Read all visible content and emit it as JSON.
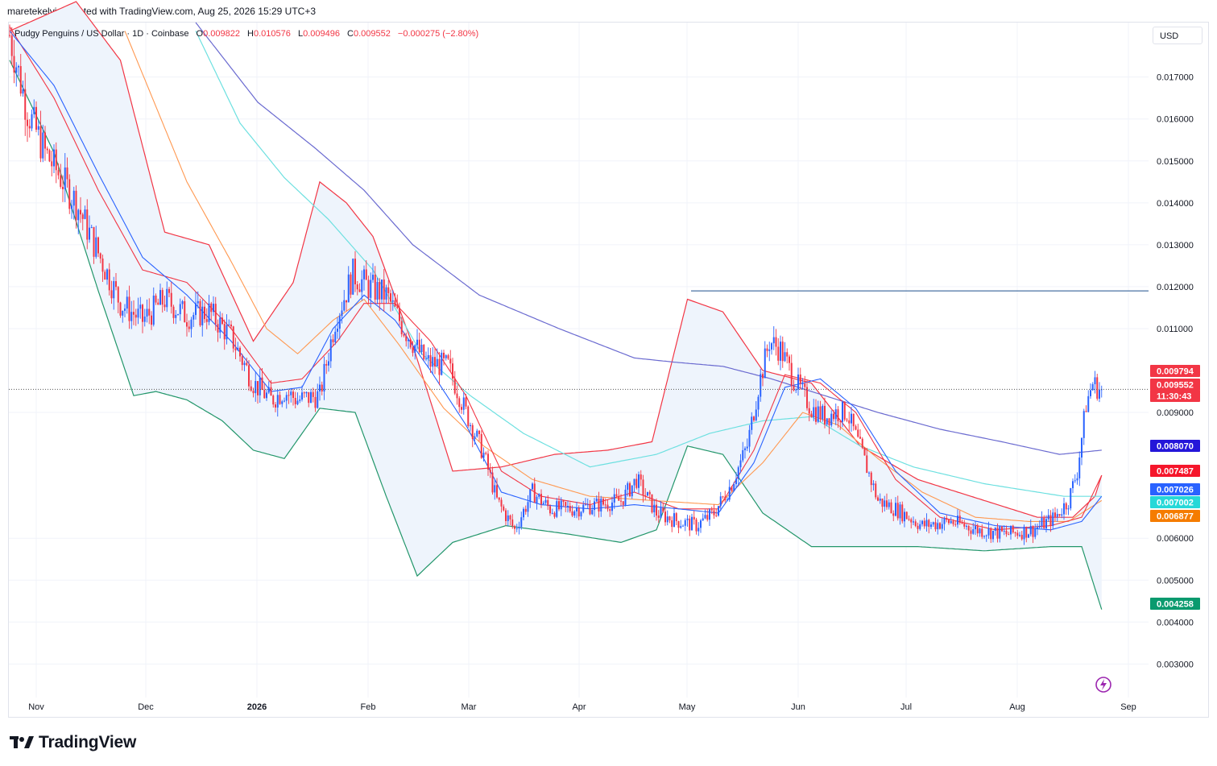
{
  "header": {
    "created_by": "maretekelvin created with TradingView.com, Aug 25, 2026 15:29 UTC+3"
  },
  "legend": {
    "symbol": "Pudgy Penguins / US Dollar · 1D · Coinbase",
    "open_label": "O",
    "open": "0.009822",
    "high_label": "H",
    "high": "0.010576",
    "low_label": "L",
    "low": "0.009496",
    "close_label": "C",
    "close": "0.009552",
    "change": "−0.000275 (−2.80%)"
  },
  "currency": "USD",
  "brand": "TradingView",
  "colors": {
    "up": "#2962ff",
    "down": "#f23645",
    "bb_fill": "#eef4fc",
    "ma_red": "#f23645",
    "ma_blue": "#2962ff",
    "ma_orange": "#ff9850",
    "ma_cyan": "#6de0e0",
    "ma_purple": "#6a6ad0",
    "bb_lower": "#22966a",
    "resistance": "#1e4f8c",
    "lightning": "#9c27b0"
  },
  "chart_data": {
    "type": "candlestick",
    "ylim": [
      0.0022,
      0.0183
    ],
    "y_ticks": [
      "0.017000",
      "0.016000",
      "0.015000",
      "0.014000",
      "0.013000",
      "0.012000",
      "0.011000",
      "0.009000",
      "0.006000",
      "0.005000",
      "0.004000",
      "0.003000"
    ],
    "x_labels": [
      "Nov",
      "Dec",
      "2026",
      "Feb",
      "Mar",
      "Apr",
      "May",
      "Jun",
      "Jul",
      "Aug",
      "Sep"
    ],
    "last_price": 0.009552,
    "resistance_level": 0.0119,
    "badges": [
      {
        "text": "0.009794",
        "color": "#f23645",
        "value": 0.009794
      },
      {
        "text": "0.009552",
        "color": "#f23645",
        "value": 0.009552
      },
      {
        "text": "11:30:43",
        "color": "#f23645",
        "value": 0.009552
      },
      {
        "text": "0.008070",
        "color": "#2416d9",
        "value": 0.00807
      },
      {
        "text": "0.007487",
        "color": "#f5162b",
        "value": 0.007487
      },
      {
        "text": "0.007026",
        "color": "#2962ff",
        "value": 0.007026
      },
      {
        "text": "0.007002",
        "color": "#26d8d8",
        "value": 0.007002
      },
      {
        "text": "0.006877",
        "color": "#f57c00",
        "value": 0.006877
      },
      {
        "text": "0.004258",
        "color": "#0a9a6e",
        "value": 0.004258
      }
    ],
    "close_path": [
      [
        0,
        0.018
      ],
      [
        8,
        0.0162
      ],
      [
        16,
        0.0152
      ],
      [
        22,
        0.0147
      ],
      [
        30,
        0.014
      ],
      [
        40,
        0.0128
      ],
      [
        50,
        0.0116
      ],
      [
        60,
        0.0112
      ],
      [
        70,
        0.0117
      ],
      [
        80,
        0.0113
      ],
      [
        90,
        0.0114
      ],
      [
        100,
        0.0108
      ],
      [
        110,
        0.0097
      ],
      [
        118,
        0.0093
      ],
      [
        124,
        0.0095
      ],
      [
        130,
        0.0093
      ],
      [
        140,
        0.0094
      ],
      [
        147,
        0.0112
      ],
      [
        155,
        0.0123
      ],
      [
        162,
        0.012
      ],
      [
        170,
        0.0118
      ],
      [
        178,
        0.011
      ],
      [
        188,
        0.0102
      ],
      [
        198,
        0.0101
      ],
      [
        206,
        0.009
      ],
      [
        214,
        0.008
      ],
      [
        220,
        0.0069
      ],
      [
        228,
        0.0062
      ],
      [
        236,
        0.0071
      ],
      [
        244,
        0.0067
      ],
      [
        255,
        0.0067
      ],
      [
        266,
        0.0068
      ],
      [
        276,
        0.0069
      ],
      [
        283,
        0.0074
      ],
      [
        292,
        0.0066
      ],
      [
        302,
        0.0064
      ],
      [
        310,
        0.0063
      ],
      [
        318,
        0.0066
      ],
      [
        326,
        0.0073
      ],
      [
        333,
        0.0082
      ],
      [
        338,
        0.0096
      ],
      [
        343,
        0.0107
      ],
      [
        348,
        0.0105
      ],
      [
        354,
        0.0098
      ],
      [
        362,
        0.0091
      ],
      [
        368,
        0.0089
      ],
      [
        373,
        0.009
      ],
      [
        378,
        0.009
      ],
      [
        385,
        0.008
      ],
      [
        392,
        0.0069
      ],
      [
        400,
        0.0067
      ],
      [
        412,
        0.0063
      ],
      [
        425,
        0.0064
      ],
      [
        437,
        0.0062
      ],
      [
        450,
        0.0061
      ],
      [
        462,
        0.0062
      ],
      [
        472,
        0.0065
      ],
      [
        478,
        0.0069
      ],
      [
        482,
        0.0076
      ],
      [
        486,
        0.0092
      ],
      [
        489,
        0.0097
      ],
      [
        493,
        0.0095
      ]
    ],
    "ma_red_path": [
      [
        0,
        0.0182
      ],
      [
        20,
        0.0165
      ],
      [
        40,
        0.0143
      ],
      [
        60,
        0.0124
      ],
      [
        80,
        0.0121
      ],
      [
        100,
        0.011
      ],
      [
        118,
        0.0097
      ],
      [
        132,
        0.0098
      ],
      [
        148,
        0.0107
      ],
      [
        160,
        0.0116
      ],
      [
        174,
        0.0116
      ],
      [
        190,
        0.0107
      ],
      [
        206,
        0.0094
      ],
      [
        222,
        0.0076
      ],
      [
        240,
        0.007
      ],
      [
        262,
        0.0068
      ],
      [
        282,
        0.0071
      ],
      [
        302,
        0.0067
      ],
      [
        320,
        0.0067
      ],
      [
        336,
        0.0081
      ],
      [
        350,
        0.0099
      ],
      [
        366,
        0.0097
      ],
      [
        382,
        0.009
      ],
      [
        400,
        0.0074
      ],
      [
        420,
        0.0065
      ],
      [
        445,
        0.0062
      ],
      [
        470,
        0.0063
      ],
      [
        484,
        0.0065
      ],
      [
        493,
        0.0075
      ]
    ],
    "ma_blue_path": [
      [
        0,
        0.0181
      ],
      [
        20,
        0.0168
      ],
      [
        40,
        0.0147
      ],
      [
        60,
        0.0127
      ],
      [
        80,
        0.0118
      ],
      [
        100,
        0.0107
      ],
      [
        118,
        0.0095
      ],
      [
        132,
        0.0096
      ],
      [
        146,
        0.011
      ],
      [
        160,
        0.0118
      ],
      [
        174,
        0.0112
      ],
      [
        190,
        0.01
      ],
      [
        206,
        0.0087
      ],
      [
        222,
        0.0071
      ],
      [
        240,
        0.0068
      ],
      [
        262,
        0.0067
      ],
      [
        282,
        0.0068
      ],
      [
        302,
        0.0067
      ],
      [
        320,
        0.0066
      ],
      [
        336,
        0.0078
      ],
      [
        350,
        0.0096
      ],
      [
        366,
        0.0098
      ],
      [
        382,
        0.0091
      ],
      [
        400,
        0.0076
      ],
      [
        420,
        0.0066
      ],
      [
        445,
        0.0063
      ],
      [
        470,
        0.0062
      ],
      [
        484,
        0.0064
      ],
      [
        493,
        0.007
      ]
    ],
    "ma_orange_path": [
      [
        52,
        0.0181
      ],
      [
        80,
        0.0145
      ],
      [
        100,
        0.0126
      ],
      [
        116,
        0.011
      ],
      [
        130,
        0.0104
      ],
      [
        146,
        0.0112
      ],
      [
        160,
        0.0117
      ],
      [
        176,
        0.0106
      ],
      [
        196,
        0.0091
      ],
      [
        214,
        0.0082
      ],
      [
        236,
        0.0074
      ],
      [
        262,
        0.007
      ],
      [
        290,
        0.0069
      ],
      [
        320,
        0.0068
      ],
      [
        340,
        0.0078
      ],
      [
        358,
        0.009
      ],
      [
        374,
        0.0087
      ],
      [
        392,
        0.0079
      ],
      [
        412,
        0.0071
      ],
      [
        436,
        0.0065
      ],
      [
        460,
        0.0064
      ],
      [
        478,
        0.0064
      ],
      [
        493,
        0.0069
      ]
    ],
    "ma_cyan_path": [
      [
        84,
        0.0181
      ],
      [
        104,
        0.0159
      ],
      [
        124,
        0.0146
      ],
      [
        144,
        0.0136
      ],
      [
        164,
        0.0124
      ],
      [
        186,
        0.0104
      ],
      [
        208,
        0.0094
      ],
      [
        232,
        0.0085
      ],
      [
        262,
        0.0077
      ],
      [
        292,
        0.008
      ],
      [
        316,
        0.0085
      ],
      [
        340,
        0.0088
      ],
      [
        362,
        0.0089
      ],
      [
        384,
        0.0082
      ],
      [
        408,
        0.0077
      ],
      [
        440,
        0.0073
      ],
      [
        476,
        0.007
      ],
      [
        493,
        0.007
      ]
    ],
    "ma_purple_path": [
      [
        84,
        0.0183
      ],
      [
        112,
        0.0164
      ],
      [
        138,
        0.0153
      ],
      [
        160,
        0.0143
      ],
      [
        182,
        0.013
      ],
      [
        212,
        0.0118
      ],
      [
        248,
        0.011
      ],
      [
        282,
        0.0103
      ],
      [
        300,
        0.0102
      ],
      [
        322,
        0.0101
      ],
      [
        344,
        0.0098
      ],
      [
        368,
        0.0094
      ],
      [
        392,
        0.009
      ],
      [
        420,
        0.0086
      ],
      [
        448,
        0.0083
      ],
      [
        474,
        0.008
      ],
      [
        493,
        0.0081
      ]
    ],
    "bb_upper_path": [
      [
        0,
        0.0181
      ],
      [
        30,
        0.0188
      ],
      [
        50,
        0.0174
      ],
      [
        70,
        0.0133
      ],
      [
        90,
        0.013
      ],
      [
        110,
        0.0107
      ],
      [
        128,
        0.0121
      ],
      [
        140,
        0.0145
      ],
      [
        152,
        0.014
      ],
      [
        164,
        0.0132
      ],
      [
        182,
        0.0106
      ],
      [
        200,
        0.0076
      ],
      [
        222,
        0.0077
      ],
      [
        246,
        0.008
      ],
      [
        270,
        0.0081
      ],
      [
        290,
        0.0083
      ],
      [
        306,
        0.0117
      ],
      [
        322,
        0.0114
      ],
      [
        340,
        0.01
      ],
      [
        362,
        0.0097
      ],
      [
        384,
        0.0082
      ],
      [
        410,
        0.0074
      ],
      [
        440,
        0.0069
      ],
      [
        464,
        0.0065
      ],
      [
        480,
        0.0065
      ],
      [
        490,
        0.007
      ],
      [
        493,
        0.0075
      ]
    ],
    "bb_lower_path": [
      [
        0,
        0.0174
      ],
      [
        20,
        0.0152
      ],
      [
        40,
        0.0119
      ],
      [
        56,
        0.0094
      ],
      [
        66,
        0.0095
      ],
      [
        80,
        0.0093
      ],
      [
        96,
        0.0088
      ],
      [
        110,
        0.0081
      ],
      [
        124,
        0.0079
      ],
      [
        140,
        0.0091
      ],
      [
        156,
        0.009
      ],
      [
        170,
        0.007
      ],
      [
        184,
        0.0051
      ],
      [
        200,
        0.0059
      ],
      [
        224,
        0.0063
      ],
      [
        252,
        0.0061
      ],
      [
        276,
        0.0059
      ],
      [
        292,
        0.0062
      ],
      [
        306,
        0.0082
      ],
      [
        322,
        0.008
      ],
      [
        340,
        0.0066
      ],
      [
        362,
        0.0058
      ],
      [
        384,
        0.0058
      ],
      [
        410,
        0.0058
      ],
      [
        440,
        0.0057
      ],
      [
        470,
        0.0058
      ],
      [
        484,
        0.0058
      ],
      [
        493,
        0.0043
      ]
    ]
  }
}
